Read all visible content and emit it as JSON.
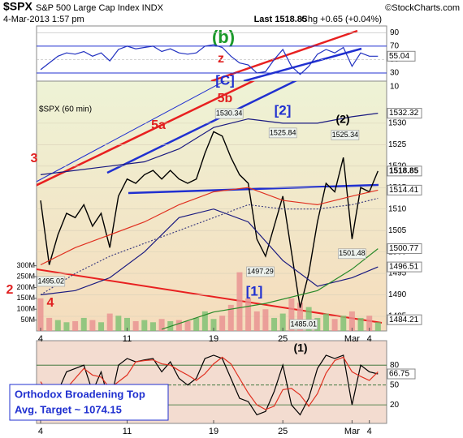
{
  "header": {
    "symbol": "$SPX",
    "name": "S&P 500 Large Cap Index INDX",
    "brand": "©StockCharts.com",
    "date": "4-Mar-2013 1:57 pm",
    "last": "Last 1518.85",
    "chg": "Chg +0.65 (+0.04%)"
  },
  "chart_data": [
    {
      "type": "line",
      "label": "$SPX (60 min)",
      "x": [
        0,
        0.5,
        1,
        1.5,
        2,
        2.5,
        3,
        3.5,
        4,
        4.5,
        5,
        5.5,
        6,
        6.5,
        7,
        7.5,
        8,
        8.5,
        9,
        9.5,
        10,
        10.5,
        11,
        11.5,
        12,
        12.5,
        13,
        13.5,
        14,
        14.5,
        15,
        15.5,
        16,
        16.5,
        17,
        17.5,
        18,
        18.5,
        19,
        19.5
      ],
      "xlim": [
        -0.15,
        20
      ],
      "xticks": [
        {
          "value": 0,
          "label": "4"
        },
        {
          "value": 5,
          "label": "11"
        },
        {
          "value": 10,
          "label": "19"
        },
        {
          "value": 14,
          "label": "25"
        },
        {
          "value": 18,
          "label": "Mar"
        },
        {
          "value": 19,
          "label": "4"
        }
      ],
      "ylim": [
        1481.6,
        1539.8
      ],
      "yticks": [
        1485,
        1490,
        1495,
        1500,
        1505,
        1510,
        1515,
        1520,
        1525,
        1530
      ],
      "series": [
        {
          "color": "#000000",
          "values": [
            1512,
            1497,
            1504,
            1509,
            1508,
            1511,
            1506,
            1509,
            1501,
            1513,
            1517,
            1516,
            1518,
            1519,
            1517,
            1519,
            1517,
            1516,
            1517,
            1523,
            1528,
            1527,
            1522,
            1518,
            1516,
            1503,
            1499,
            1506,
            1513,
            1500,
            1487,
            1495,
            1507,
            1516,
            1514,
            1522,
            1503,
            1515,
            1514,
            1518.85
          ]
        },
        {
          "color": "#1a1a80",
          "x": [
            0,
            2,
            4,
            6,
            8,
            10,
            12,
            14,
            16,
            18,
            19.5
          ],
          "values": [
            1518,
            1519,
            1520,
            1521,
            1524,
            1529,
            1531,
            1530,
            1530,
            1531.5,
            1532.32
          ]
        },
        {
          "color": "#1a1a80",
          "x": [
            0,
            2,
            4,
            6,
            8,
            10,
            12,
            14,
            16,
            18,
            19.5
          ],
          "values": [
            1490,
            1491,
            1494,
            1500,
            1508,
            1510,
            1507,
            1498,
            1492,
            1494,
            1496.51
          ]
        },
        {
          "color": "#e03020",
          "x": [
            0,
            2,
            4,
            6,
            8,
            10,
            12,
            14,
            16,
            18,
            19.5
          ],
          "values": [
            1497,
            1501,
            1504,
            1507,
            1511,
            1514,
            1515,
            1512,
            1511,
            1513,
            1514.41
          ]
        },
        {
          "color": "#404080",
          "dashed": true,
          "x": [
            0,
            2,
            4,
            6,
            8,
            10,
            12,
            14,
            16,
            18,
            19.5
          ],
          "values": [
            1490,
            1495,
            1499,
            1502,
            1505,
            1508,
            1511,
            1510,
            1510,
            1511,
            1512.5
          ]
        },
        {
          "color": "#2a8a2a",
          "x": [
            7,
            10,
            13,
            16,
            18,
            19.5
          ],
          "values": [
            1482,
            1486,
            1488,
            1491,
            1496,
            1500.77
          ]
        }
      ],
      "price_levels": [
        1532.32,
        1514.41,
        1500.77,
        1496.51,
        1484.21
      ],
      "price_labels": [
        {
          "x": 10.9,
          "value": 1530.34
        },
        {
          "x": 14,
          "value": 1525.84
        },
        {
          "x": 17.6,
          "value": 1525.34
        },
        {
          "x": 12.7,
          "value": 1497.29
        },
        {
          "x": 18,
          "value": 1501.48
        },
        {
          "x": 0.6,
          "value": 1495.02
        },
        {
          "x": 15.2,
          "value": 1485.01
        }
      ],
      "volume": {
        "color": "#e89090",
        "up_color": "#7ac070",
        "ylim": [
          0,
          1150
        ],
        "ticks": [
          {
            "value": 50,
            "label": "50M"
          },
          {
            "value": 100,
            "label": "100M"
          },
          {
            "value": 150,
            "label": "150M"
          },
          {
            "value": 200,
            "label": "200M"
          },
          {
            "value": 250,
            "label": "250M"
          },
          {
            "value": 300,
            "label": "300M"
          }
        ],
        "values": [
          150,
          60,
          50,
          40,
          45,
          60,
          50,
          40,
          80,
          70,
          60,
          45,
          50,
          40,
          55,
          45,
          50,
          45,
          60,
          90,
          55,
          70,
          120,
          270,
          150,
          90,
          100,
          60,
          80,
          150,
          130,
          110,
          60,
          80,
          55,
          70,
          90,
          60,
          70,
          40
        ]
      },
      "wave_labels": [
        {
          "text": "(b)",
          "color": "#1a9a2a"
        },
        {
          "text": "z",
          "color": "#e02020"
        },
        {
          "text": "[C]",
          "color": "#2030d0"
        },
        {
          "text": "5b",
          "color": "#e02020"
        },
        {
          "text": "5a",
          "color": "#e02020"
        },
        {
          "text": "3",
          "color": "#e02020"
        },
        {
          "text": "[2]",
          "color": "#2030d0"
        },
        {
          "text": "(2)",
          "color": "#000000"
        },
        {
          "text": "[1]",
          "color": "#2030d0"
        },
        {
          "text": "2",
          "color": "#e02020"
        },
        {
          "text": "4",
          "color": "#e02020"
        },
        {
          "text": "(1)",
          "color": "#000000"
        }
      ],
      "note": [
        "Orthodox Broadening Top",
        "Avg. Target ~ 1074.15"
      ]
    },
    {
      "type": "line",
      "x": [
        0,
        0.5,
        1,
        1.5,
        2,
        2.5,
        3,
        3.5,
        4,
        4.5,
        5,
        5.5,
        6,
        6.5,
        7,
        7.5,
        8,
        8.5,
        9,
        9.5,
        10,
        10.5,
        11,
        11.5,
        12,
        12.5,
        13,
        13.5,
        14,
        14.5,
        15,
        15.5,
        16,
        16.5,
        17,
        17.5,
        18,
        18.5,
        19,
        19.5
      ],
      "xlim": [
        -0.15,
        20
      ],
      "ylim": [
        18,
        100
      ],
      "yticks": [
        10,
        30,
        50,
        70,
        90
      ],
      "series": [
        {
          "color": "#2030c0",
          "values": [
            35,
            45,
            55,
            60,
            58,
            62,
            55,
            60,
            48,
            65,
            70,
            66,
            68,
            70,
            62,
            66,
            60,
            58,
            60,
            70,
            72,
            68,
            55,
            45,
            42,
            30,
            32,
            50,
            65,
            40,
            28,
            40,
            58,
            65,
            60,
            68,
            40,
            60,
            55,
            55.04
          ]
        }
      ]
    },
    {
      "type": "line",
      "x": [
        0,
        0.5,
        1,
        1.5,
        2,
        2.5,
        3,
        3.5,
        4,
        4.5,
        5,
        5.5,
        6,
        6.5,
        7,
        7.5,
        8,
        8.5,
        9,
        9.5,
        10,
        10.5,
        11,
        11.5,
        12,
        12.5,
        13,
        13.5,
        14,
        14.5,
        15,
        15.5,
        16,
        16.5,
        17,
        17.5,
        18,
        18.5,
        19,
        19.5
      ],
      "xlim": [
        -0.15,
        20
      ],
      "xticks": [
        {
          "value": 0,
          "label": "4"
        },
        {
          "value": 5,
          "label": "11"
        },
        {
          "value": 10,
          "label": "19"
        },
        {
          "value": 14,
          "label": "25"
        },
        {
          "value": 18,
          "label": "Mar"
        },
        {
          "value": 19,
          "label": "4"
        }
      ],
      "ylim": [
        -8,
        117
      ],
      "yticks": [
        20,
        50,
        80
      ],
      "series": [
        {
          "color": "#000000",
          "values": [
            50,
            20,
            40,
            70,
            75,
            80,
            40,
            70,
            20,
            80,
            90,
            85,
            88,
            90,
            70,
            85,
            60,
            50,
            60,
            90,
            95,
            90,
            60,
            30,
            25,
            5,
            10,
            40,
            80,
            20,
            5,
            30,
            75,
            95,
            90,
            95,
            20,
            80,
            70,
            66.75
          ]
        },
        {
          "color": "#e03020",
          "values": [
            55,
            35,
            35,
            45,
            60,
            75,
            65,
            62,
            45,
            55,
            65,
            85,
            87,
            88,
            82,
            80,
            72,
            65,
            57,
            67,
            82,
            92,
            82,
            60,
            38,
            20,
            13,
            18,
            43,
            45,
            35,
            18,
            37,
            68,
            87,
            92,
            70,
            63,
            57,
            70
          ]
        }
      ]
    }
  ]
}
